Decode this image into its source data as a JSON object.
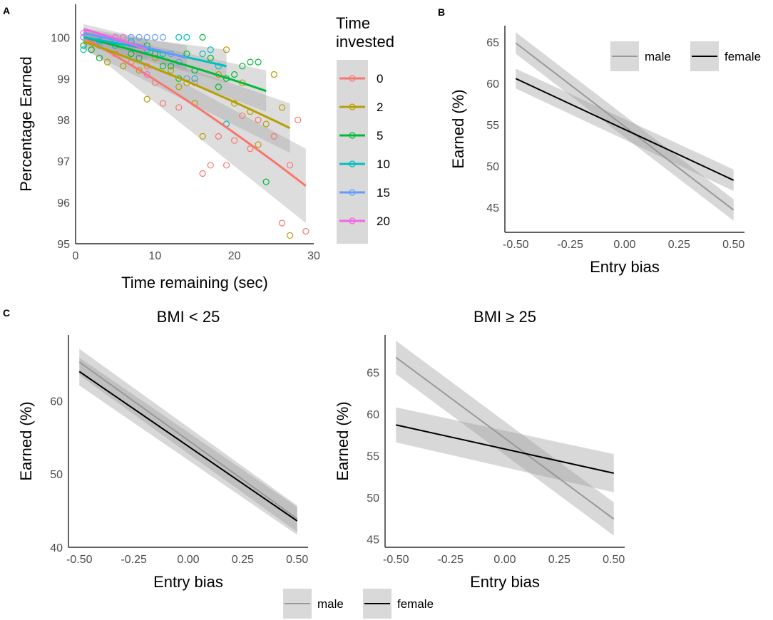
{
  "chart_data": [
    {
      "panel": "A",
      "type": "scatter",
      "title": "",
      "xlabel": "Time remaining (sec)",
      "ylabel": "Percentage Earned",
      "xlim": [
        0,
        30
      ],
      "ylim": [
        95,
        100.8
      ],
      "xticks": [
        0,
        10,
        20,
        30
      ],
      "yticks": [
        95,
        96,
        97,
        98,
        99,
        100
      ],
      "legend_title": "Time invested",
      "legend_position": "right",
      "series": [
        {
          "name": "0",
          "color": "#F8766D",
          "line": {
            "x0": 1,
            "y0": 100.0,
            "x1": 29,
            "y1": 96.4,
            "se": [
              0.2,
              0.9
            ]
          },
          "points": [
            [
              1,
              100.0
            ],
            [
              3,
              99.5
            ],
            [
              5,
              99.6
            ],
            [
              7,
              99.4
            ],
            [
              9,
              99.3
            ],
            [
              10,
              98.9
            ],
            [
              11,
              98.4
            ],
            [
              13,
              98.3
            ],
            [
              14,
              99.0
            ],
            [
              15,
              98.9
            ],
            [
              16,
              96.7
            ],
            [
              17,
              96.9
            ],
            [
              18,
              97.6
            ],
            [
              19,
              96.9
            ],
            [
              20,
              97.5
            ],
            [
              21,
              98.1
            ],
            [
              22,
              97.3
            ],
            [
              23,
              98.0
            ],
            [
              25,
              97.6
            ],
            [
              26,
              95.5
            ],
            [
              28,
              98.0
            ],
            [
              27,
              96.9
            ],
            [
              29,
              95.3
            ]
          ]
        },
        {
          "name": "2",
          "color": "#B79F00",
          "line": {
            "x0": 1,
            "y0": 99.9,
            "x1": 27,
            "y1": 97.8,
            "se": [
              0.2,
              0.6
            ]
          },
          "points": [
            [
              1,
              99.8
            ],
            [
              2,
              99.7
            ],
            [
              4,
              99.4
            ],
            [
              6,
              99.3
            ],
            [
              8,
              99.2
            ],
            [
              9,
              98.5
            ],
            [
              10,
              99.5
            ],
            [
              12,
              99.2
            ],
            [
              13,
              98.8
            ],
            [
              14,
              98.9
            ],
            [
              15,
              98.4
            ],
            [
              16,
              97.6
            ],
            [
              17,
              99.5
            ],
            [
              18,
              99.1
            ],
            [
              19,
              99.7
            ],
            [
              20,
              98.4
            ],
            [
              21,
              98.9
            ],
            [
              22,
              98.2
            ],
            [
              23,
              97.4
            ],
            [
              24,
              97.9
            ],
            [
              25,
              99.1
            ],
            [
              26,
              98.3
            ],
            [
              27,
              95.2
            ]
          ]
        },
        {
          "name": "5",
          "color": "#00BA38",
          "line": {
            "x0": 1,
            "y0": 100.0,
            "x1": 24,
            "y1": 98.7,
            "se": [
              0.15,
              0.5
            ]
          },
          "points": [
            [
              1,
              99.8
            ],
            [
              2,
              99.7
            ],
            [
              3,
              99.5
            ],
            [
              5,
              99.8
            ],
            [
              7,
              99.6
            ],
            [
              8,
              99.5
            ],
            [
              9,
              99.8
            ],
            [
              10,
              99.6
            ],
            [
              11,
              99.3
            ],
            [
              12,
              99.3
            ],
            [
              13,
              99.0
            ],
            [
              14,
              99.6
            ],
            [
              15,
              99.2
            ],
            [
              16,
              100.0
            ],
            [
              17,
              99.5
            ],
            [
              18,
              98.8
            ],
            [
              19,
              99.0
            ],
            [
              20,
              99.1
            ],
            [
              21,
              99.3
            ],
            [
              22,
              99.4
            ],
            [
              23,
              99.4
            ],
            [
              24,
              96.5
            ]
          ]
        },
        {
          "name": "10",
          "color": "#00BFC4",
          "line": {
            "x0": 1,
            "y0": 100.0,
            "x1": 19,
            "y1": 99.3,
            "se": [
              0.15,
              0.4
            ]
          },
          "points": [
            [
              1,
              99.7
            ],
            [
              3,
              99.9
            ],
            [
              5,
              99.8
            ],
            [
              7,
              99.9
            ],
            [
              9,
              99.7
            ],
            [
              11,
              99.6
            ],
            [
              13,
              100.0
            ],
            [
              14,
              100.0
            ],
            [
              15,
              99.0
            ],
            [
              16,
              99.6
            ],
            [
              17,
              99.7
            ],
            [
              18,
              99.3
            ],
            [
              19,
              97.9
            ]
          ]
        },
        {
          "name": "15",
          "color": "#619CFF",
          "line": {
            "x0": 1,
            "y0": 100.1,
            "x1": 14,
            "y1": 99.5,
            "se": [
              0.12,
              0.3
            ]
          },
          "points": [
            [
              1,
              100.0
            ],
            [
              3,
              99.8
            ],
            [
              5,
              99.9
            ],
            [
              7,
              100.0
            ],
            [
              8,
              100.0
            ],
            [
              9,
              100.0
            ],
            [
              10,
              100.0
            ],
            [
              11,
              100.0
            ],
            [
              12,
              99.6
            ],
            [
              13,
              99.4
            ],
            [
              14,
              99.0
            ]
          ]
        },
        {
          "name": "20",
          "color": "#F564E3",
          "line": {
            "x0": 1,
            "y0": 100.2,
            "x1": 9,
            "y1": 99.7,
            "se": [
              0.12,
              0.25
            ]
          },
          "points": [
            [
              1,
              100.1
            ],
            [
              2,
              99.9
            ],
            [
              3,
              100.0
            ],
            [
              4,
              99.9
            ],
            [
              5,
              100.0
            ],
            [
              6,
              100.0
            ],
            [
              7,
              99.8
            ],
            [
              8,
              99.6
            ],
            [
              9,
              99.1
            ]
          ]
        }
      ]
    },
    {
      "panel": "B",
      "type": "line",
      "title": "",
      "xlabel": "Entry bias",
      "ylabel": "Earned (%)",
      "xlim": [
        -0.55,
        0.55
      ],
      "ylim": [
        42,
        67
      ],
      "xticks": [
        -0.5,
        -0.25,
        0.0,
        0.25,
        0.5
      ],
      "xtick_labels": [
        "-0.50",
        "-0.25",
        "0.00",
        "0.25",
        "0.50"
      ],
      "yticks": [
        45,
        50,
        55,
        60,
        65
      ],
      "legend_position": "top-right",
      "series": [
        {
          "name": "male",
          "color": "#999999",
          "x": [
            -0.5,
            0.5
          ],
          "y": [
            64.9,
            44.7
          ],
          "se": [
            1.3,
            1.3
          ]
        },
        {
          "name": "female",
          "color": "#000000",
          "x": [
            -0.5,
            0.5
          ],
          "y": [
            60.6,
            48.3
          ],
          "se": [
            1.2,
            1.3
          ]
        }
      ]
    },
    {
      "panel": "C",
      "type": "line",
      "title": "BMI < 25",
      "xlabel": "Entry bias",
      "ylabel": "Earned (%)",
      "xlim": [
        -0.55,
        0.55
      ],
      "ylim": [
        40,
        69
      ],
      "xticks": [
        -0.5,
        -0.25,
        0.0,
        0.25,
        0.5
      ],
      "xtick_labels": [
        "-0.50",
        "-0.25",
        "0.00",
        "0.25",
        "0.50"
      ],
      "yticks": [
        40,
        50,
        60
      ],
      "series": [
        {
          "name": "male",
          "color": "#999999",
          "x": [
            -0.5,
            0.5
          ],
          "y": [
            65.3,
            43.9
          ],
          "se": [
            1.8,
            1.8
          ]
        },
        {
          "name": "female",
          "color": "#000000",
          "x": [
            -0.5,
            0.5
          ],
          "y": [
            64.0,
            43.6
          ],
          "se": [
            1.9,
            1.9
          ]
        }
      ]
    },
    {
      "panel": "C2",
      "type": "line",
      "title": "BMI ≥ 25",
      "xlabel": "Entry bias",
      "ylabel": "Earned (%)",
      "xlim": [
        -0.55,
        0.55
      ],
      "ylim": [
        44,
        69.5
      ],
      "xticks": [
        -0.5,
        -0.25,
        0.0,
        0.25,
        0.5
      ],
      "xtick_labels": [
        "-0.50",
        "-0.25",
        "0.00",
        "0.25",
        "0.50"
      ],
      "yticks": [
        45,
        50,
        55,
        60,
        65
      ],
      "series": [
        {
          "name": "male",
          "color": "#999999",
          "x": [
            -0.5,
            0.5
          ],
          "y": [
            66.8,
            47.4
          ],
          "se": [
            2.0,
            2.0
          ]
        },
        {
          "name": "female",
          "color": "#000000",
          "x": [
            -0.5,
            0.5
          ],
          "y": [
            58.7,
            52.9
          ],
          "se": [
            2.1,
            2.3
          ]
        }
      ]
    }
  ],
  "panel_letters": [
    "A",
    "B",
    "C"
  ],
  "legend_bottom": [
    "male",
    "female"
  ],
  "styles": {
    "band_color": "#9e9e9e",
    "band_opacity": 0.4,
    "legend_key_fill": "#d9d9d9"
  }
}
